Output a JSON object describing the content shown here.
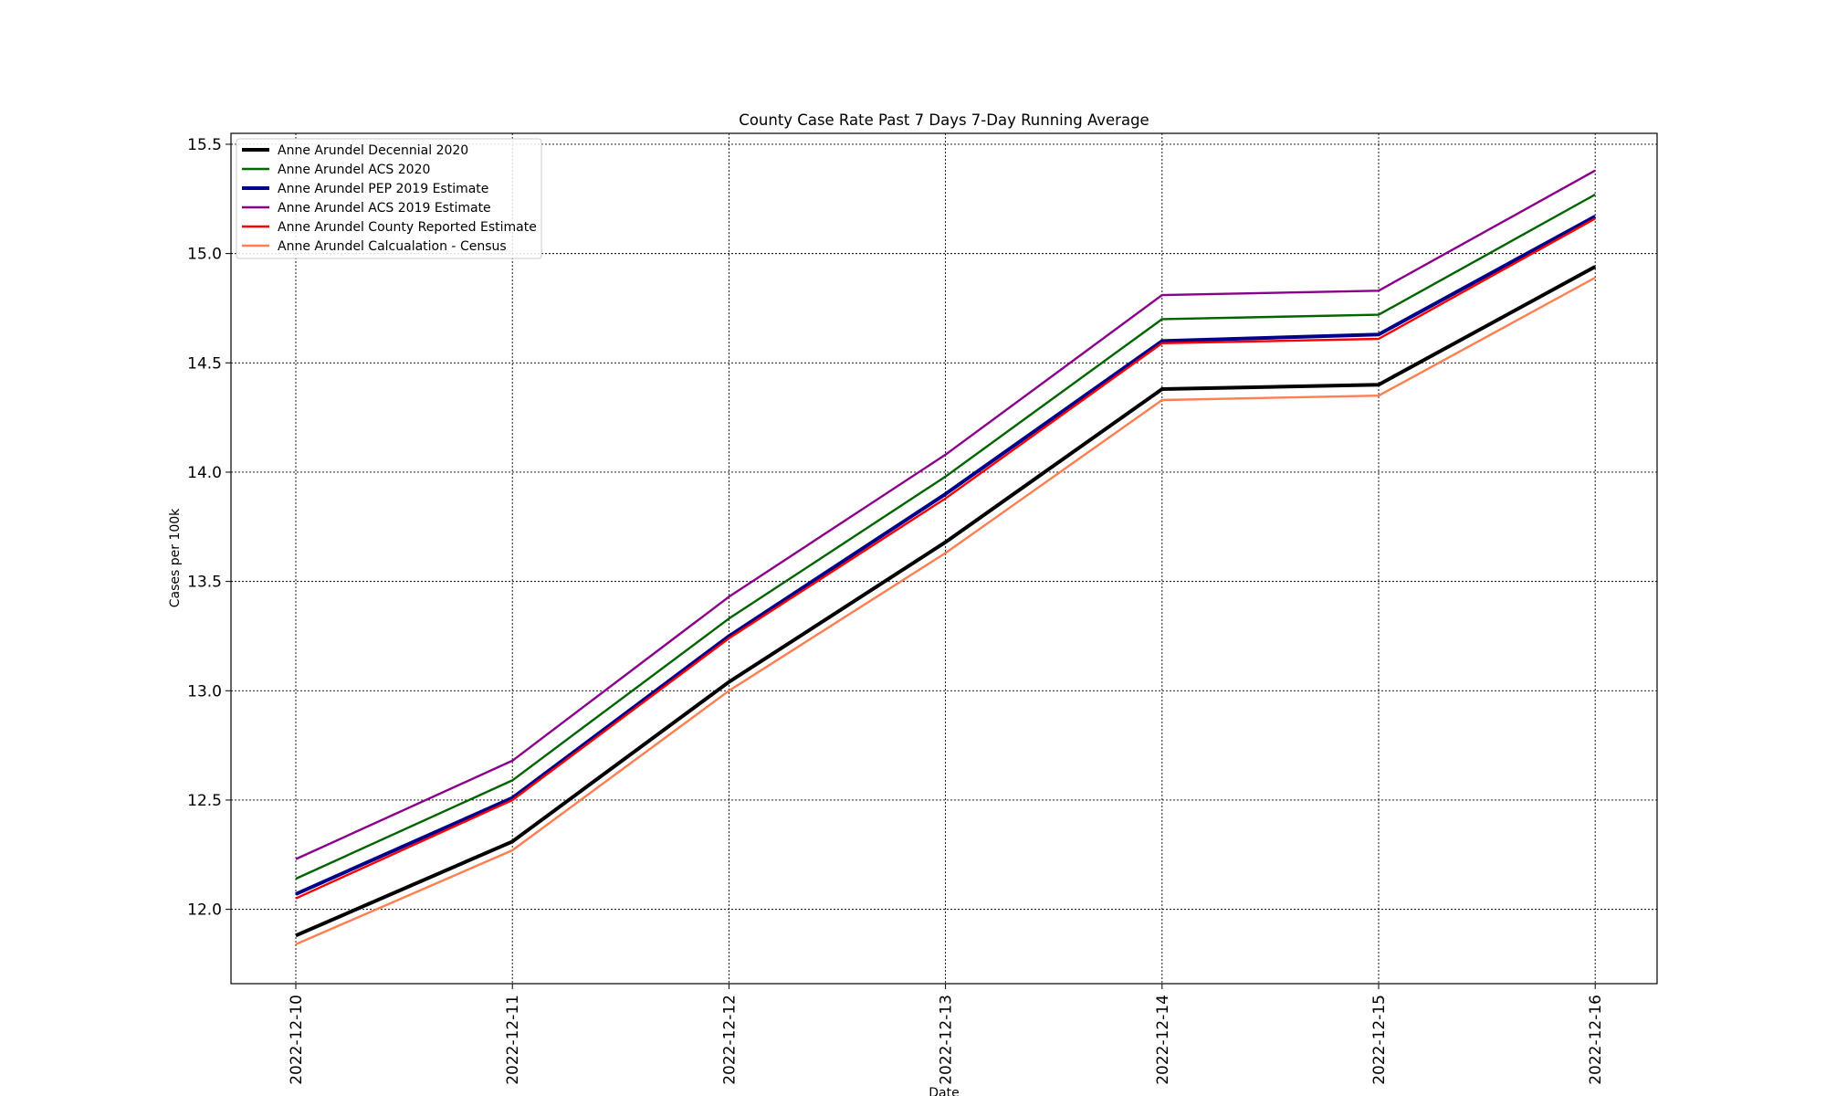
{
  "chart_data": {
    "type": "line",
    "title": "County Case Rate  Past 7 Days 7-Day Running Average",
    "xlabel": "Date",
    "ylabel": "Cases per 100k",
    "categories": [
      "2022-12-10",
      "2022-12-11",
      "2022-12-12",
      "2022-12-13",
      "2022-12-14",
      "2022-12-15",
      "2022-12-16"
    ],
    "ylim": [
      11.66,
      15.55
    ],
    "yticks": [
      "12.0",
      "12.5",
      "13.0",
      "13.5",
      "14.0",
      "14.5",
      "15.0",
      "15.5"
    ],
    "grid": true,
    "legend_position": "top-left",
    "series": [
      {
        "name": "Anne Arundel Decennial 2020",
        "color": "#000000",
        "values": [
          11.88,
          12.31,
          13.04,
          13.68,
          14.38,
          14.4,
          14.94
        ]
      },
      {
        "name": "Anne Arundel ACS 2020",
        "color": "#006400",
        "values": [
          12.14,
          12.59,
          13.33,
          13.98,
          14.7,
          14.72,
          15.27
        ]
      },
      {
        "name": "Anne Arundel PEP 2019 Estimate",
        "color": "#00008b",
        "values": [
          12.07,
          12.51,
          13.25,
          13.9,
          14.6,
          14.63,
          15.17
        ]
      },
      {
        "name": "Anne Arundel ACS 2019 Estimate",
        "color": "#8b008b",
        "values": [
          12.23,
          12.68,
          13.43,
          14.08,
          14.81,
          14.83,
          15.38
        ]
      },
      {
        "name": "Anne Arundel County Reported Estimate",
        "color": "#ff0000",
        "values": [
          12.05,
          12.5,
          13.24,
          13.88,
          14.59,
          14.61,
          15.16
        ]
      },
      {
        "name": "Anne Arundel Calcualation - Census",
        "color": "#ff7f50",
        "values": [
          11.84,
          12.27,
          13.0,
          13.63,
          14.33,
          14.35,
          14.89
        ]
      }
    ]
  }
}
